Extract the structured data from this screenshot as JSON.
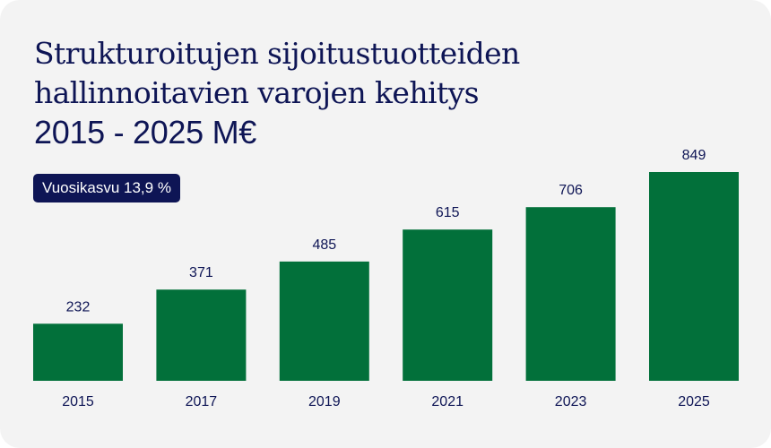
{
  "chart_data": {
    "type": "bar",
    "title": [
      "Strukturoitujen sijoitustuotteiden",
      "hallinnoitavien varojen kehitys",
      "2015 - 2025 M€"
    ],
    "badge": "Vuosikasvu 13,9 %",
    "categories": [
      "2015",
      "2017",
      "2019",
      "2021",
      "2023",
      "2025"
    ],
    "values": [
      232,
      371,
      485,
      615,
      706,
      849
    ],
    "value_labels": [
      "232",
      "371",
      "485",
      "615",
      "706",
      "849"
    ],
    "ylim": [
      0,
      849
    ],
    "grid": false,
    "bar_color": "#02703a",
    "text_color": "#0e1555",
    "badge_color": "#0e1555",
    "background": "#f3f3f3"
  }
}
